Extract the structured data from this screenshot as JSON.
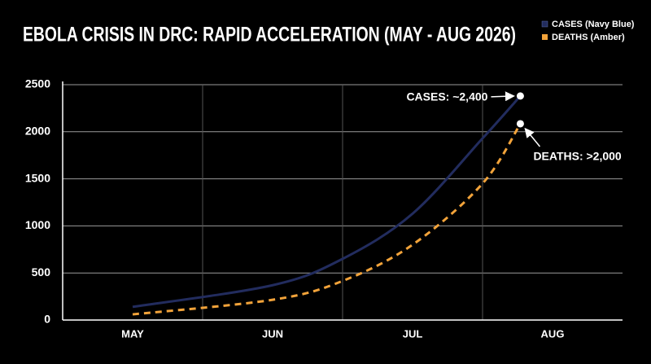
{
  "chart_data": {
    "type": "line",
    "title": "EBOLA CRISIS IN DRC: RAPID ACCELERATION (MAY - AUG 2026)",
    "xticks": [
      {
        "value": 0,
        "label": "MAY"
      },
      {
        "value": 1,
        "label": "JUN"
      },
      {
        "value": 2,
        "label": "JUL"
      },
      {
        "value": 3,
        "label": "AUG"
      }
    ],
    "xlim": [
      -0.5,
      3.5
    ],
    "ylim": [
      0,
      2500
    ],
    "yticks": [
      0,
      500,
      1000,
      1500,
      2000,
      2500
    ],
    "grid": true,
    "legend": "top-right",
    "x": [
      0,
      1,
      1.5,
      2,
      2.5,
      2.77
    ],
    "series": [
      {
        "name": "CASES (Navy Blue)",
        "color": "#222c5e",
        "dash": false,
        "values": [
          140,
          370,
          650,
          1130,
          1930,
          2380
        ]
      },
      {
        "name": "DEATHS (Amber)",
        "color": "#f2a33a",
        "dash": true,
        "values": [
          60,
          215,
          415,
          800,
          1450,
          2085
        ]
      }
    ],
    "annotations": [
      "CASES: ~2,400",
      "DEATHS: >2,000"
    ]
  }
}
